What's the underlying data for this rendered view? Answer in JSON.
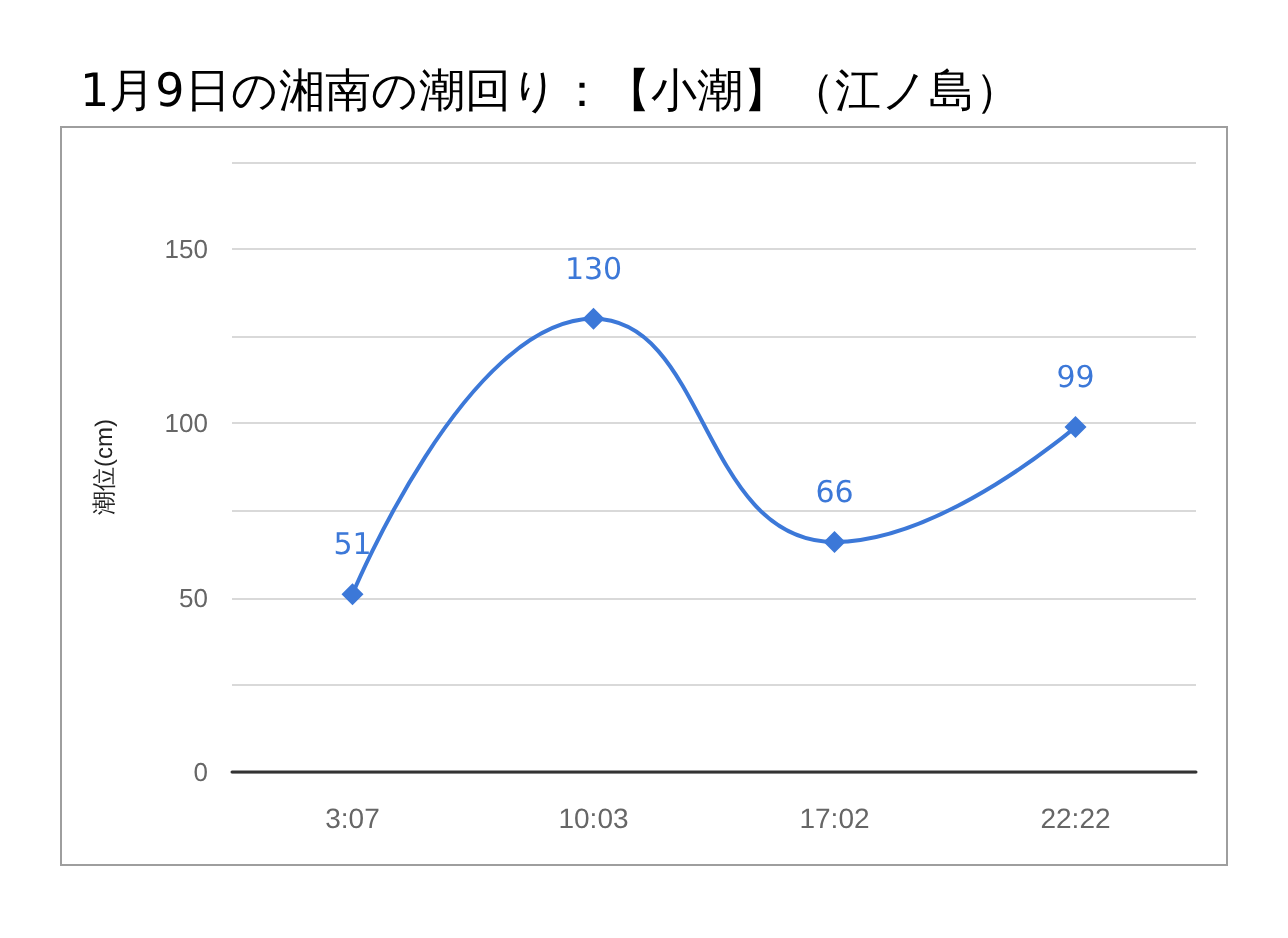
{
  "chart_data": {
    "type": "line",
    "title": "1月9日の湘南の潮回り：【小潮】（江ノ島）",
    "ylabel": "潮位(cm)",
    "categories": [
      "3:07",
      "10:03",
      "17:02",
      "22:22"
    ],
    "series": [
      {
        "color": "#3c78d8",
        "values": [
          51,
          130,
          66,
          99
        ]
      }
    ],
    "ylim": [
      0,
      175
    ],
    "yticks": [
      0,
      {
        "value": 25,
        "label": null
      },
      50,
      {
        "value": 75,
        "label": null
      },
      100,
      {
        "value": 125,
        "label": null
      },
      150,
      {
        "value": 175,
        "label": null
      }
    ],
    "grid": "y",
    "marker": "diamond",
    "line_style": "solid",
    "data_labels": true
  }
}
